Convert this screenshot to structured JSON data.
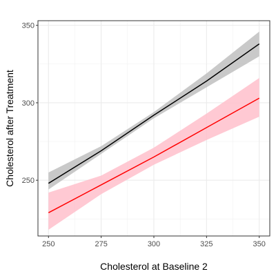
{
  "chart_data": {
    "type": "line",
    "title": "",
    "xlabel": "Cholesterol at Baseline 2",
    "ylabel": "Cholesterol after Treatment",
    "xlim": [
      245,
      355
    ],
    "ylim": [
      214,
      353
    ],
    "x_ticks": [
      250,
      275,
      300,
      325,
      350
    ],
    "y_ticks": [
      250,
      300,
      350
    ],
    "x_tick_labels": [
      "250",
      "275",
      "300",
      "325",
      "350"
    ],
    "y_tick_labels": [
      "250",
      "300",
      "350"
    ],
    "grid": true,
    "legend": "none",
    "series": [
      {
        "color": "#000000",
        "band_color": "#bfbfbf",
        "x": [
          250,
          275,
          300,
          325,
          350
        ],
        "y": [
          248,
          269,
          292,
          314,
          338
        ],
        "lower": [
          244,
          267,
          290,
          310,
          330
        ],
        "upper": [
          255,
          272,
          294,
          319,
          346
        ]
      },
      {
        "color": "#ff0000",
        "band_color": "#ffc0cb",
        "x": [
          250,
          275,
          300,
          325,
          350
        ],
        "y": [
          229,
          247,
          265,
          284,
          303
        ],
        "lower": [
          218,
          241,
          260,
          276,
          291
        ],
        "upper": [
          242,
          253,
          271,
          293,
          316
        ]
      }
    ]
  }
}
